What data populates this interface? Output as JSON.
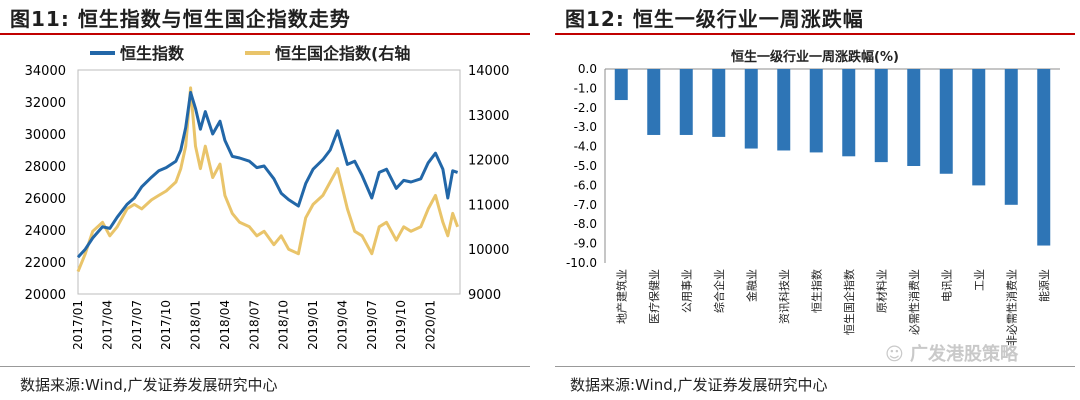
{
  "left": {
    "fig_label": "图11:",
    "fig_title": "恒生指数与恒生国企指数走势",
    "source": "数据来源:Wind,广发证券发展研究中心",
    "chart_data": {
      "type": "line",
      "title": "",
      "legend": [
        "恒生指数",
        "恒生国企指数(右轴"
      ],
      "legend_position": "top",
      "colors": {
        "hsi": "#2267a8",
        "hscei": "#e9c46a"
      },
      "x_ticks": [
        "2017/01",
        "2017/04",
        "2017/07",
        "2017/10",
        "2018/01",
        "2018/04",
        "2018/07",
        "2018/10",
        "2019/01",
        "2019/04",
        "2019/07",
        "2019/10",
        "2020/01"
      ],
      "y_left": {
        "ticks": [
          20000,
          22000,
          24000,
          26000,
          28000,
          30000,
          32000,
          34000
        ],
        "ylim": [
          20000,
          34000
        ]
      },
      "y_right": {
        "ticks": [
          9000,
          10000,
          11000,
          12000,
          13000,
          14000
        ],
        "ylim": [
          9000,
          14000
        ]
      },
      "x_range": [
        0,
        15.6
      ],
      "series": [
        {
          "name": "恒生指数",
          "axis": "left",
          "x": [
            0,
            0.3,
            0.6,
            1,
            1.3,
            1.6,
            2,
            2.3,
            2.6,
            3,
            3.3,
            3.6,
            4,
            4.2,
            4.4,
            4.6,
            4.8,
            5,
            5.2,
            5.5,
            5.8,
            6,
            6.3,
            6.6,
            7,
            7.3,
            7.6,
            8,
            8.3,
            8.6,
            9,
            9.3,
            9.6,
            10,
            10.3,
            10.6,
            11,
            11.3,
            11.6,
            12,
            12.3,
            12.6,
            13,
            13.3,
            13.6,
            14,
            14.3,
            14.6,
            14.9,
            15.1,
            15.3,
            15.5
          ],
          "y": [
            22300,
            22800,
            23500,
            24200,
            24100,
            24800,
            25600,
            26000,
            26700,
            27300,
            27700,
            27900,
            28300,
            29000,
            30400,
            32600,
            31600,
            30300,
            31400,
            30000,
            30800,
            29600,
            28600,
            28500,
            28300,
            27900,
            28000,
            27200,
            26300,
            25900,
            25500,
            26900,
            27800,
            28400,
            29000,
            30200,
            28100,
            28300,
            27400,
            26000,
            27600,
            27800,
            26600,
            27100,
            27000,
            27200,
            28200,
            28800,
            27800,
            26000,
            27700,
            27600
          ]
        },
        {
          "name": "恒生国企指数(右轴",
          "axis": "right",
          "x": [
            0,
            0.3,
            0.6,
            1,
            1.3,
            1.6,
            2,
            2.3,
            2.6,
            3,
            3.3,
            3.6,
            4,
            4.2,
            4.4,
            4.6,
            4.8,
            5,
            5.2,
            5.5,
            5.8,
            6,
            6.3,
            6.6,
            7,
            7.3,
            7.6,
            8,
            8.3,
            8.6,
            9,
            9.3,
            9.6,
            10,
            10.3,
            10.6,
            11,
            11.3,
            11.6,
            12,
            12.3,
            12.6,
            13,
            13.3,
            13.6,
            14,
            14.3,
            14.6,
            14.9,
            15.1,
            15.3,
            15.5
          ],
          "y": [
            9500,
            9900,
            10400,
            10600,
            10300,
            10500,
            10900,
            11000,
            10900,
            11100,
            11200,
            11300,
            11500,
            11800,
            12300,
            13600,
            12300,
            11800,
            12300,
            11600,
            11900,
            11200,
            10800,
            10600,
            10500,
            10300,
            10400,
            10100,
            10300,
            10000,
            9900,
            10700,
            11000,
            11200,
            11500,
            11800,
            10900,
            10400,
            10300,
            9900,
            10500,
            10600,
            10200,
            10500,
            10400,
            10500,
            10900,
            11200,
            10600,
            10300,
            10800,
            10500
          ]
        }
      ]
    }
  },
  "right": {
    "fig_label": "图12:",
    "fig_title": "恒生一级行业一周涨跌幅",
    "source": "数据来源:Wind,广发证券发展研究中心",
    "chart_data": {
      "type": "bar",
      "title": "恒生一级行业一周涨跌幅(%)",
      "categories": [
        "地产建筑业",
        "医疗保健业",
        "公用事业",
        "综合企业",
        "金融业",
        "资讯科技业",
        "恒生指数",
        "恒生国企指数",
        "原材料业",
        "必需性消费业",
        "电讯业",
        "工业",
        "非必需性消费业",
        "能源业"
      ],
      "values": [
        -1.6,
        -3.4,
        -3.4,
        -3.5,
        -4.1,
        -4.2,
        -4.3,
        -4.5,
        -4.8,
        -5.0,
        -5.4,
        -6.0,
        -7.0,
        -9.1
      ],
      "y_ticks": [
        0.0,
        -1.0,
        -2.0,
        -3.0,
        -4.0,
        -5.0,
        -6.0,
        -7.0,
        -8.0,
        -9.0,
        -10.0
      ],
      "ylim": [
        -10,
        0
      ],
      "color": "#2e75b6"
    }
  },
  "watermark": "广发港股策略"
}
